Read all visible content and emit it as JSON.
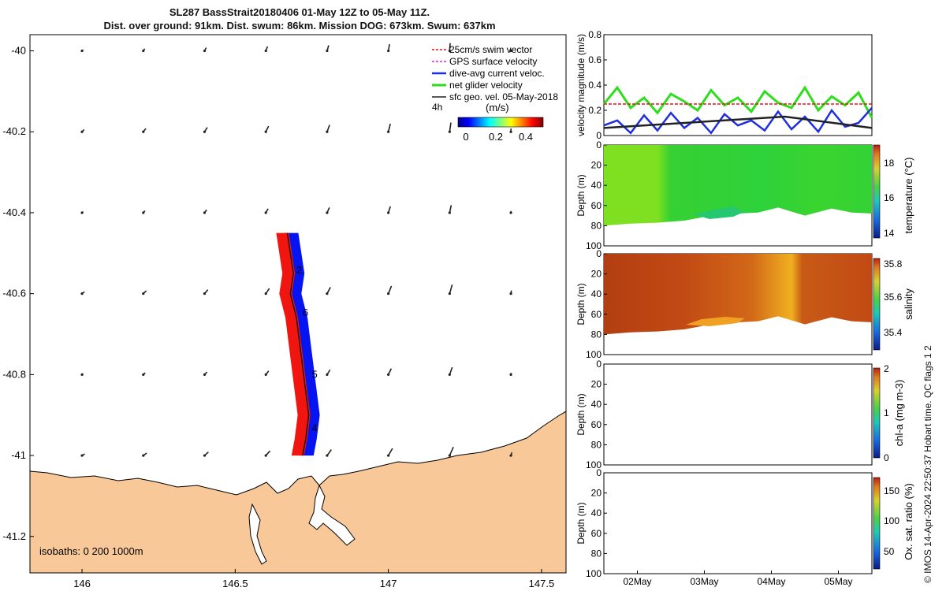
{
  "title": {
    "line1": "SL287 BassStrait20180406 01-May 12Z to 05-May 11Z.",
    "line2": "Dist. over ground: 91km. Dist. swum: 86km. Mission DOG: 673km. Swum: 637km"
  },
  "credit": "© IMOS 14-Apr-2024 22:50:37 Hobart time. QC flags 1  2",
  "colors": {
    "land": "#f9c898",
    "swim": "#e8141a",
    "gps": "#d42ad8",
    "dive": "#1f2fe0",
    "net": "#2ede1c",
    "geo": "#222222",
    "blue_fill": "#0714f2",
    "red_fill": "#f0150e"
  },
  "chart_data": [
    {
      "type": "scatter",
      "panel": "track map",
      "xticks": [
        "146",
        "146.5",
        "147",
        "147.5"
      ],
      "yticks": [
        "-40",
        "-40.2",
        "-40.4",
        "-40.6",
        "-40.8",
        "-41",
        "-41.2"
      ],
      "xlim": [
        145.83,
        147.58
      ],
      "ylim": [
        -41.29,
        -39.96
      ],
      "legend": {
        "placement": "top-right",
        "entries": [
          "25cm/s swim vector",
          "GPS surface velocity",
          "dive-avg current veloc.",
          "net glider velocity",
          "sfc geo. vel. 05-May-2018"
        ]
      },
      "colorbar": {
        "label": "(m/s)",
        "ticks": [
          "0",
          "0.2",
          "0.4"
        ],
        "interval_label": "4h"
      },
      "isobaths_note": "isobaths: 0   200  1000m",
      "day_labels": [
        {
          "text": "2",
          "lon": 146.7,
          "lat": -40.55
        },
        {
          "text": "6",
          "lon": 146.72,
          "lat": -40.655
        },
        {
          "text": "5",
          "lon": 146.75,
          "lat": -40.808
        },
        {
          "text": "4",
          "lon": 146.75,
          "lat": -40.94
        }
      ],
      "track": [
        {
          "lon": 146.67,
          "lat": -40.45
        },
        {
          "lon": 146.68,
          "lat": -40.5
        },
        {
          "lon": 146.69,
          "lat": -40.55
        },
        {
          "lon": 146.68,
          "lat": -40.6
        },
        {
          "lon": 146.7,
          "lat": -40.66
        },
        {
          "lon": 146.71,
          "lat": -40.72
        },
        {
          "lon": 146.72,
          "lat": -40.78
        },
        {
          "lon": 146.73,
          "lat": -40.84
        },
        {
          "lon": 146.74,
          "lat": -40.9
        },
        {
          "lon": 146.73,
          "lat": -40.96
        },
        {
          "lon": 146.72,
          "lat": -41.0
        }
      ],
      "geo_vectors_lat": [
        -40,
        -40.2,
        -40.4,
        -40.6,
        -40.8,
        -41
      ],
      "geo_vectors_lon": [
        146,
        146.2,
        146.4,
        146.6,
        146.8,
        147,
        147.2,
        147.4
      ]
    },
    {
      "type": "line",
      "panel": "velocity",
      "ylabel": "velocity magnitude (m/s)",
      "ylim": [
        0,
        0.8
      ],
      "yticks": [
        "0",
        "0.2",
        "0.4",
        "0.6",
        "0.8"
      ],
      "xlim": [
        0.5,
        4.5
      ],
      "series": [
        {
          "color": "#2ede1c",
          "x": [
            0.5,
            0.7,
            0.9,
            1.1,
            1.3,
            1.5,
            1.7,
            1.9,
            2.1,
            2.3,
            2.5,
            2.7,
            2.9,
            3.1,
            3.3,
            3.5,
            3.7,
            3.9,
            4.1,
            4.3,
            4.5
          ],
          "values": [
            0.25,
            0.38,
            0.22,
            0.3,
            0.18,
            0.33,
            0.27,
            0.2,
            0.36,
            0.24,
            0.3,
            0.19,
            0.35,
            0.26,
            0.22,
            0.38,
            0.2,
            0.31,
            0.24,
            0.34,
            0.14
          ]
        },
        {
          "color": "#1f2fe0",
          "x": [
            0.5,
            0.7,
            0.9,
            1.1,
            1.3,
            1.5,
            1.7,
            1.9,
            2.1,
            2.3,
            2.5,
            2.7,
            2.9,
            3.1,
            3.3,
            3.5,
            3.7,
            3.9,
            4.1,
            4.3,
            4.5
          ],
          "values": [
            0.08,
            0.12,
            0.02,
            0.16,
            0.04,
            0.18,
            0.06,
            0.14,
            0.02,
            0.17,
            0.08,
            0.12,
            0.04,
            0.19,
            0.05,
            0.15,
            0.03,
            0.2,
            0.07,
            0.1,
            0.22
          ]
        },
        {
          "color": "#222222",
          "x": [
            0.5,
            3.2,
            4.5
          ],
          "values": [
            0.06,
            0.15,
            0.06
          ]
        },
        {
          "color": "#e8141a",
          "dashed": true,
          "x": [
            0.5,
            4.5
          ],
          "values": [
            0.25,
            0.25
          ]
        }
      ]
    },
    {
      "type": "heatmap",
      "panel": "temperature",
      "ylabel": "Depth (m)",
      "colorbar_label": "temperature (°C)",
      "colorbar_ticks": [
        "14",
        "16",
        "18"
      ],
      "ylim": [
        0,
        100
      ],
      "yticks": [
        "0",
        "20",
        "40",
        "60",
        "80",
        "100"
      ],
      "bottom_depth": [
        {
          "x": 0.5,
          "y": 80
        },
        {
          "x": 0.9,
          "y": 78
        },
        {
          "x": 1.3,
          "y": 77
        },
        {
          "x": 1.7,
          "y": 75
        },
        {
          "x": 2.1,
          "y": 70
        },
        {
          "x": 2.5,
          "y": 68
        },
        {
          "x": 2.8,
          "y": 67
        },
        {
          "x": 3.1,
          "y": 62
        },
        {
          "x": 3.5,
          "y": 70
        },
        {
          "x": 3.9,
          "y": 63
        },
        {
          "x": 4.2,
          "y": 67
        },
        {
          "x": 4.5,
          "y": 68
        }
      ]
    },
    {
      "type": "heatmap",
      "panel": "salinity",
      "ylabel": "Depth (m)",
      "colorbar_label": "salinity",
      "colorbar_ticks": [
        "35.4",
        "35.6",
        "35.8"
      ],
      "ylim": [
        0,
        100
      ],
      "yticks": [
        "0",
        "20",
        "40",
        "60",
        "80",
        "100"
      ]
    },
    {
      "type": "heatmap",
      "panel": "chlorophyll",
      "ylabel": "Depth (m)",
      "colorbar_label": "chl-a (mg m-3)",
      "colorbar_ticks": [
        "0",
        "1",
        "2"
      ],
      "ylim": [
        0,
        100
      ],
      "yticks": [
        "0",
        "20",
        "40",
        "60",
        "80",
        "100"
      ]
    },
    {
      "type": "heatmap",
      "panel": "oxygen",
      "ylabel": "Depth (m)",
      "colorbar_label": "Ox. sat. ratio (%)",
      "colorbar_ticks": [
        "50",
        "100",
        "150"
      ],
      "ylim": [
        0,
        100
      ],
      "yticks": [
        "0",
        "20",
        "40",
        "60",
        "80",
        "100"
      ],
      "xticks": [
        {
          "label": "02May",
          "x": 1
        },
        {
          "label": "03May",
          "x": 2
        },
        {
          "label": "04May",
          "x": 3
        },
        {
          "label": "05May",
          "x": 4
        }
      ]
    }
  ]
}
